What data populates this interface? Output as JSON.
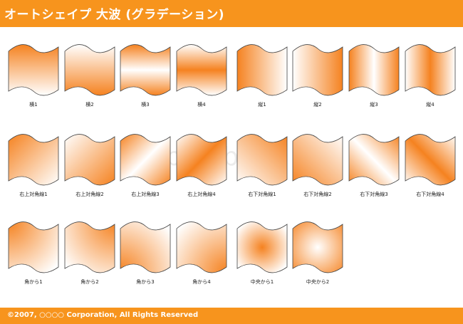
{
  "header": {
    "title": "オートシェイプ 大波 (グラデーション)"
  },
  "footer": {
    "copyright": "©2007, ○○○○ Corporation, All Rights Reserved"
  },
  "watermark": {
    "text": "pixabean"
  },
  "colors": {
    "accent": "#f7941d",
    "shape_orange": "#f58220",
    "shape_light": "#ffffff",
    "outline": "#444444"
  },
  "shapes": [
    {
      "label": "横1"
    },
    {
      "label": "横2"
    },
    {
      "label": "横3"
    },
    {
      "label": "横4"
    },
    {
      "label": "縦1"
    },
    {
      "label": "縦2"
    },
    {
      "label": "縦3"
    },
    {
      "label": "縦4"
    },
    {
      "label": "右上対角線1"
    },
    {
      "label": "右上対角線2"
    },
    {
      "label": "右上対角線3"
    },
    {
      "label": "右上対角線4"
    },
    {
      "label": "右下対角線1"
    },
    {
      "label": "右下対角線2"
    },
    {
      "label": "右下対角線3"
    },
    {
      "label": "右下対角線4"
    },
    {
      "label": "角から1"
    },
    {
      "label": "角から2"
    },
    {
      "label": "角から3"
    },
    {
      "label": "角から4"
    },
    {
      "label": "中央から1"
    },
    {
      "label": "中央から2"
    }
  ]
}
